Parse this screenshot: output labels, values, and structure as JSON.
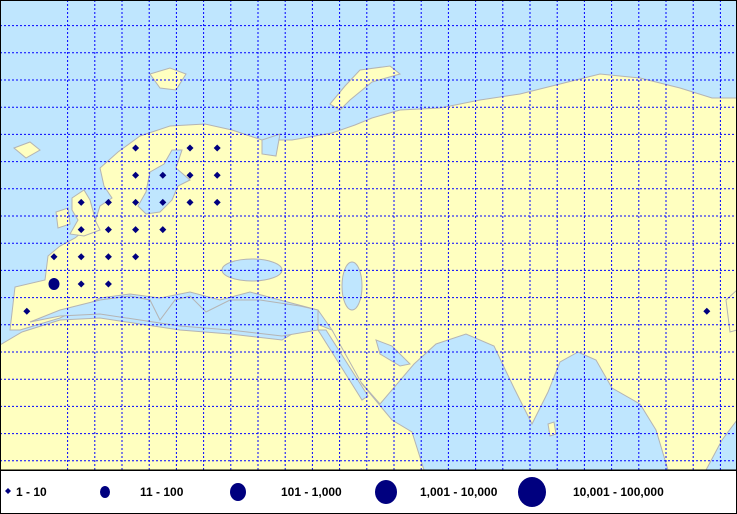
{
  "map": {
    "colors": {
      "ocean": "#bfe6fe",
      "land": "#ffffc0",
      "border": "#b4b4b4",
      "grid": "#0000ff",
      "marker": "#00007f"
    },
    "grid_spacing_deg": 5,
    "points": [
      {
        "lon": 2.5,
        "lat": 67.5,
        "class": "1 - 10"
      },
      {
        "lon": 12.5,
        "lat": 67.5,
        "class": "1 - 10"
      },
      {
        "lon": 17.5,
        "lat": 67.5,
        "class": "1 - 10"
      },
      {
        "lon": 2.5,
        "lat": 62.5,
        "class": "1 - 10"
      },
      {
        "lon": 7.5,
        "lat": 62.5,
        "class": "1 - 10"
      },
      {
        "lon": 12.5,
        "lat": 62.5,
        "class": "1 - 10"
      },
      {
        "lon": 17.5,
        "lat": 62.5,
        "class": "1 - 10"
      },
      {
        "lon": -7.5,
        "lat": 57.5,
        "class": "1 - 10"
      },
      {
        "lon": -2.5,
        "lat": 57.5,
        "class": "1 - 10"
      },
      {
        "lon": 2.5,
        "lat": 57.5,
        "class": "1 - 10"
      },
      {
        "lon": 7.5,
        "lat": 57.5,
        "class": "1 - 10"
      },
      {
        "lon": 12.5,
        "lat": 57.5,
        "class": "1 - 10"
      },
      {
        "lon": 17.5,
        "lat": 57.5,
        "class": "1 - 10"
      },
      {
        "lon": -7.5,
        "lat": 52.5,
        "class": "1 - 10"
      },
      {
        "lon": -2.5,
        "lat": 52.5,
        "class": "1 - 10"
      },
      {
        "lon": 2.5,
        "lat": 52.5,
        "class": "1 - 10"
      },
      {
        "lon": 7.5,
        "lat": 52.5,
        "class": "1 - 10"
      },
      {
        "lon": -12.5,
        "lat": 47.5,
        "class": "1 - 10"
      },
      {
        "lon": -7.5,
        "lat": 47.5,
        "class": "1 - 10"
      },
      {
        "lon": -2.5,
        "lat": 47.5,
        "class": "1 - 10"
      },
      {
        "lon": 2.5,
        "lat": 47.5,
        "class": "1 - 10"
      },
      {
        "lon": -12.5,
        "lat": 42.5,
        "class": "11 - 100"
      },
      {
        "lon": -7.5,
        "lat": 42.5,
        "class": "1 - 10"
      },
      {
        "lon": -2.5,
        "lat": 42.5,
        "class": "1 - 10"
      },
      {
        "lon": -17.5,
        "lat": 37.5,
        "class": "1 - 10"
      },
      {
        "lon": 107.5,
        "lat": 37.5,
        "class": "1 - 10"
      }
    ]
  },
  "legend": {
    "items": [
      {
        "label": "1 - 10",
        "symbol": "diamond"
      },
      {
        "label": "11 - 100",
        "symbol": "circle"
      },
      {
        "label": "101 - 1,000",
        "symbol": "circle"
      },
      {
        "label": "1,001 - 10,000",
        "symbol": "circle"
      },
      {
        "label": "10,001 - 100,000",
        "symbol": "circle"
      }
    ]
  }
}
